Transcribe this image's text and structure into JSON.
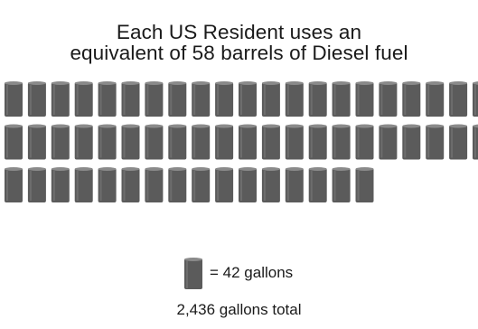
{
  "title_line1": "Each US Resident uses an",
  "title_line2": "equivalent of 58 barrels of Diesel fuel",
  "legend_label": "= 42 gallons",
  "total_label": "2,436 gallons total",
  "colors": {
    "barrel_body": "#5b5b5b",
    "barrel_top": "#8a8a8a",
    "text": "#1a1a1a"
  },
  "chart_data": {
    "type": "pictograph",
    "unit": "barrel",
    "unit_value_gallons": 42,
    "count": 58,
    "rows": [
      21,
      21,
      16
    ],
    "total_gallons": 2436
  }
}
